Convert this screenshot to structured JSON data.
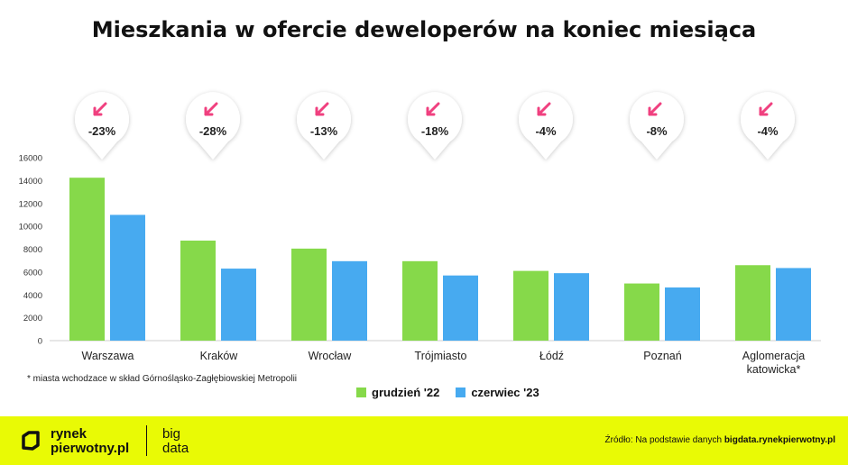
{
  "title": "Mieszkania w ofercie deweloperów na koniec miesiąca",
  "footnote": "* miasta wchodzace w skład Górnośląsko-Zagłębiowskiej Metropolii",
  "legend": {
    "series1": "grudzień '22",
    "series2": "czerwiec '23"
  },
  "colors": {
    "series1": "#86d94a",
    "series2": "#47aaf0",
    "accent": "#f0407f",
    "footer": "#e9fa05"
  },
  "footer": {
    "logo_line1": "rynek",
    "logo_line2": "pierwotny.pl",
    "logo2_line1": "big",
    "logo2_line2": "data",
    "source_prefix": "Źródło: Na podstawie danych",
    "source_bold": "bigdata.rynekpierwotny.pl"
  },
  "chart_data": {
    "type": "bar",
    "categories": [
      "Warszawa",
      "Kraków",
      "Wrocław",
      "Trójmiasto",
      "Łódź",
      "Poznań",
      "Aglomeracja katowicka*"
    ],
    "series": [
      {
        "name": "grudzień '22",
        "values": [
          14250,
          8750,
          8050,
          6950,
          6100,
          5000,
          6600
        ]
      },
      {
        "name": "czerwiec '23",
        "values": [
          11000,
          6300,
          6950,
          5700,
          5900,
          4650,
          6350
        ]
      }
    ],
    "changes": [
      "-23%",
      "-28%",
      "-13%",
      "-18%",
      "-4%",
      "-8%",
      "-4%"
    ],
    "yticks": [
      0,
      2000,
      4000,
      6000,
      8000,
      10000,
      12000,
      14000,
      16000
    ],
    "ylim": [
      0,
      16000
    ],
    "grid": false,
    "legend_position": "bottom"
  }
}
